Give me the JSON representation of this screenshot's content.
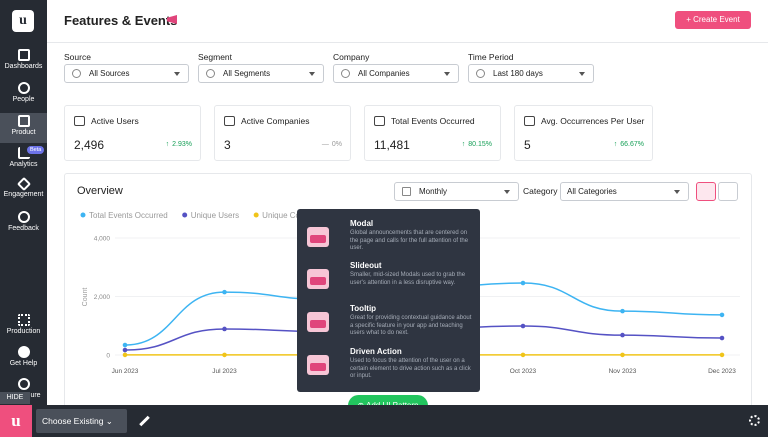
{
  "sidebar": {
    "items": [
      "Dashboards",
      "People",
      "Product",
      "Analytics",
      "Engagement",
      "Feedback"
    ],
    "badge": "Beta",
    "bottom": [
      "Production",
      "Get Help"
    ],
    "partial": "ure",
    "hide": "HIDE"
  },
  "header": {
    "title": "Features & Events",
    "button": "+ Create Event"
  },
  "filters": [
    {
      "label": "Source",
      "value": "All Sources"
    },
    {
      "label": "Segment",
      "value": "All Segments"
    },
    {
      "label": "Company",
      "value": "All Companies"
    },
    {
      "label": "Time Period",
      "value": "Last 180 days"
    }
  ],
  "cards": [
    {
      "title": "Active Users",
      "value": "2,496",
      "change": "2.93%"
    },
    {
      "title": "Active Companies",
      "value": "3",
      "change": "0%"
    },
    {
      "title": "Total Events Occurred",
      "value": "11,481",
      "change": "80.15%"
    },
    {
      "title": "Avg. Occurrences Per User",
      "value": "5",
      "change": "66.67%"
    }
  ],
  "overview": {
    "title": "Overview",
    "interval": "Monthly",
    "category_label": "Category",
    "category": "All Categories",
    "chart": {
      "type": "line",
      "ylabel": "Count",
      "categories": [
        "Jun 2023",
        "Jul 2023",
        null,
        null,
        "Oct 2023",
        "Nov 2023",
        "Dec 2023"
      ],
      "series": [
        {
          "name": "Total Events Occurred",
          "color": "#3db4f2",
          "values": [
            340,
            2150,
            1900,
            2300,
            2460,
            1500,
            1370
          ]
        },
        {
          "name": "Unique Users",
          "color": "#5552c4",
          "values": [
            170,
            890,
            800,
            900,
            990,
            680,
            580
          ]
        },
        {
          "name": "Unique Companies",
          "color": "#f0c419",
          "values": [
            3,
            3,
            3,
            3,
            3,
            3,
            3
          ]
        }
      ],
      "ylim": [
        0,
        4000
      ],
      "yticks": [
        0,
        {
          "value": 2000,
          "label": "2,000"
        },
        {
          "value": 4000,
          "label": "4,000"
        }
      ]
    }
  },
  "popup": {
    "items": [
      {
        "title": "Modal",
        "desc": "Global announcements that are centered on the page and calls for the full attention of the user."
      },
      {
        "title": "Slideout",
        "desc": "Smaller, mid-sized Modals used to grab the user's attention in a less disruptive way."
      },
      {
        "title": "Tooltip",
        "desc": "Great for providing contextual guidance about a specific feature in your app and teaching users what to do next."
      },
      {
        "title": "Driven Action",
        "desc": "Used to focus the attention of the user on a certain element to drive action such as a click or input."
      }
    ],
    "button": "Add UI Pattern"
  },
  "bottombar": {
    "select": "Choose Existing"
  }
}
